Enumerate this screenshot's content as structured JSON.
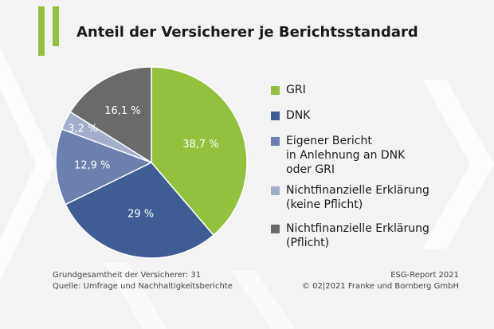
{
  "header": {
    "title": "Anteil der Versicherer je Berichtsstandard"
  },
  "chart_data": {
    "type": "pie",
    "title": "Anteil der Versicherer je Berichtsstandard",
    "slices": [
      {
        "name": "GRI",
        "legend_label": "GRI",
        "value": 38.7,
        "label": "38,7 %",
        "color": "#93c13e"
      },
      {
        "name": "DNK",
        "legend_label": "DNK",
        "value": 29,
        "label": "29 %",
        "color": "#3f5c95"
      },
      {
        "name": "Eigener Bericht in Anlehnung an DNK oder GRI",
        "legend_label": "Eigener Bericht\nin Anlehnung an DNK\noder GRI",
        "value": 12.9,
        "label": "12,9 %",
        "color": "#6d7fae"
      },
      {
        "name": "Nichtfinanzielle Erklärung (keine Pflicht)",
        "legend_label": "Nichtfinanzielle Erklärung\n(keine Pflicht)",
        "value": 3.2,
        "label": "3,2 %",
        "color": "#a3aecb"
      },
      {
        "name": "Nichtfinanzielle Erklärung (Pflicht)",
        "legend_label": "Nichtfinanzielle Erklärung\n(Pflicht)",
        "value": 16.1,
        "label": "16,1 %",
        "color": "#6a6a6a"
      }
    ],
    "legend": "right"
  },
  "footer": {
    "left_line1": "Grundgesamtheit der Versicherer: 31",
    "left_line2": "Quelle: Umfrage und Nachhaltigkeitsberichte",
    "right_line1": "ESG-Report 2021",
    "right_line2": "© 02|2021 Franke und Bornberg GmbH"
  },
  "colors": {
    "background": "#f3f3f3",
    "accent": "#93c13e"
  }
}
